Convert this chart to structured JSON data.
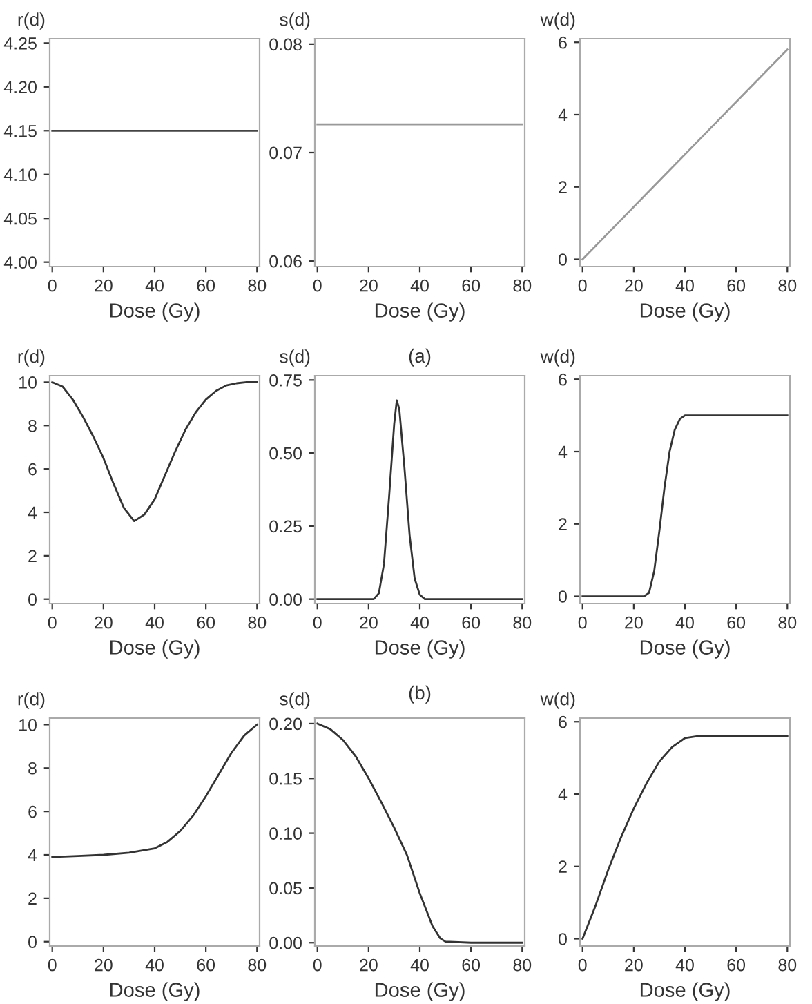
{
  "chart_data": [
    {
      "type": "line",
      "ylabel": "r(d)",
      "xlabel": "Dose (Gy)",
      "xlim": [
        -1,
        81
      ],
      "xticks": [
        0,
        20,
        40,
        60,
        80
      ],
      "ylim": [
        3.995,
        4.255
      ],
      "yticks": [
        {
          "value": 4.0,
          "label": "4.00"
        },
        {
          "value": 4.05,
          "label": "4.05"
        },
        {
          "value": 4.1,
          "label": "4.10"
        },
        {
          "value": 4.15,
          "label": "4.15"
        },
        {
          "value": 4.2,
          "label": "4.20"
        },
        {
          "value": 4.25,
          "label": "4.25"
        }
      ],
      "grid": false,
      "series": [
        {
          "color": "#444444",
          "x": [
            0,
            80
          ],
          "values": [
            4.15,
            4.15
          ]
        }
      ]
    },
    {
      "type": "line",
      "ylabel": "s(d)",
      "xlabel": "Dose (Gy)",
      "annotations": [
        "(a)"
      ],
      "xlim": [
        -1,
        81
      ],
      "xticks": [
        0,
        20,
        40,
        60,
        80
      ],
      "ylim": [
        0.0595,
        0.0805
      ],
      "yticks": [
        {
          "value": 0.06,
          "label": "0.06"
        },
        {
          "value": 0.07,
          "label": "0.07"
        },
        {
          "value": 0.08,
          "label": "0.08"
        }
      ],
      "grid": false,
      "series": [
        {
          "color": "#999999",
          "x": [
            0,
            80
          ],
          "values": [
            0.0726,
            0.0726
          ]
        }
      ]
    },
    {
      "type": "line",
      "ylabel": "w(d)",
      "xlabel": "Dose (Gy)",
      "xlim": [
        -1,
        81
      ],
      "xticks": [
        0,
        20,
        40,
        60,
        80
      ],
      "ylim": [
        -0.2,
        6.1
      ],
      "yticks": [
        0,
        2,
        4,
        6
      ],
      "grid": false,
      "series": [
        {
          "color": "#999999",
          "x": [
            0,
            80
          ],
          "values": [
            0,
            5.8
          ]
        }
      ]
    },
    {
      "type": "line",
      "ylabel": "r(d)",
      "xlabel": "Dose (Gy)",
      "xlim": [
        -1,
        81
      ],
      "xticks": [
        0,
        20,
        40,
        60,
        80
      ],
      "ylim": [
        -0.2,
        10.3
      ],
      "yticks": [
        0,
        2,
        4,
        6,
        8,
        10
      ],
      "grid": false,
      "series": [
        {
          "color": "#333333",
          "x": [
            0,
            4,
            8,
            12,
            16,
            20,
            24,
            28,
            32,
            36,
            40,
            44,
            48,
            52,
            56,
            60,
            64,
            68,
            72,
            76,
            80
          ],
          "values": [
            10.0,
            9.8,
            9.2,
            8.4,
            7.5,
            6.5,
            5.3,
            4.2,
            3.6,
            3.9,
            4.6,
            5.7,
            6.8,
            7.8,
            8.6,
            9.2,
            9.6,
            9.85,
            9.95,
            10.0,
            10.0
          ]
        }
      ]
    },
    {
      "type": "line",
      "ylabel": "s(d)",
      "xlabel": "Dose (Gy)",
      "annotations": [
        "(b)"
      ],
      "xlim": [
        -1,
        81
      ],
      "xticks": [
        0,
        20,
        40,
        60,
        80
      ],
      "ylim": [
        -0.015,
        0.765
      ],
      "yticks": [
        {
          "value": 0,
          "label": "0.00"
        },
        {
          "value": 0.25,
          "label": "0.25"
        },
        {
          "value": 0.5,
          "label": "0.50"
        },
        {
          "value": 0.75,
          "label": "0.75"
        }
      ],
      "grid": false,
      "series": [
        {
          "color": "#333333",
          "x": [
            0,
            22,
            24,
            26,
            28,
            30,
            31,
            32,
            34,
            36,
            38,
            40,
            42,
            50,
            80
          ],
          "values": [
            0.0,
            0.0,
            0.02,
            0.12,
            0.35,
            0.6,
            0.68,
            0.65,
            0.45,
            0.22,
            0.07,
            0.015,
            0.0,
            0.0,
            0.0
          ]
        }
      ]
    },
    {
      "type": "line",
      "ylabel": "w(d)",
      "xlabel": "Dose (Gy)",
      "xlim": [
        -1,
        81
      ],
      "xticks": [
        0,
        20,
        40,
        60,
        80
      ],
      "ylim": [
        -0.2,
        6.1
      ],
      "yticks": [
        0,
        2,
        4,
        6
      ],
      "grid": false,
      "series": [
        {
          "color": "#333333",
          "x": [
            0,
            24,
            26,
            28,
            30,
            32,
            34,
            36,
            38,
            40,
            50,
            80
          ],
          "values": [
            0.0,
            0.0,
            0.1,
            0.7,
            1.8,
            3.0,
            4.0,
            4.6,
            4.9,
            5.0,
            5.0,
            5.0
          ]
        }
      ]
    },
    {
      "type": "line",
      "ylabel": "r(d)",
      "xlabel": "Dose (Gy)",
      "xlim": [
        -1,
        81
      ],
      "xticks": [
        0,
        20,
        40,
        60,
        80
      ],
      "ylim": [
        -0.2,
        10.3
      ],
      "yticks": [
        0,
        2,
        4,
        6,
        8,
        10
      ],
      "grid": false,
      "series": [
        {
          "color": "#333333",
          "x": [
            0,
            10,
            20,
            30,
            40,
            45,
            50,
            55,
            60,
            65,
            70,
            75,
            80
          ],
          "values": [
            3.9,
            3.95,
            4.0,
            4.1,
            4.3,
            4.6,
            5.1,
            5.8,
            6.7,
            7.7,
            8.7,
            9.5,
            10.0
          ]
        }
      ]
    },
    {
      "type": "line",
      "ylabel": "s(d)",
      "xlabel": "Dose (Gy)",
      "xlim": [
        -1,
        81
      ],
      "xticks": [
        0,
        20,
        40,
        60,
        80
      ],
      "ylim": [
        -0.003,
        0.205
      ],
      "yticks": [
        {
          "value": 0,
          "label": "0.00"
        },
        {
          "value": 0.05,
          "label": "0.05"
        },
        {
          "value": 0.1,
          "label": "0.10"
        },
        {
          "value": 0.15,
          "label": "0.15"
        },
        {
          "value": 0.2,
          "label": "0.20"
        }
      ],
      "grid": false,
      "series": [
        {
          "color": "#333333",
          "x": [
            0,
            5,
            10,
            15,
            20,
            25,
            30,
            35,
            40,
            45,
            48,
            50,
            60,
            80
          ],
          "values": [
            0.2,
            0.195,
            0.185,
            0.17,
            0.15,
            0.128,
            0.105,
            0.08,
            0.045,
            0.015,
            0.004,
            0.001,
            0.0,
            0.0
          ]
        }
      ]
    },
    {
      "type": "line",
      "ylabel": "w(d)",
      "xlabel": "Dose (Gy)",
      "xlim": [
        -1,
        81
      ],
      "xticks": [
        0,
        20,
        40,
        60,
        80
      ],
      "ylim": [
        -0.2,
        6.1
      ],
      "yticks": [
        0,
        2,
        4,
        6
      ],
      "grid": false,
      "series": [
        {
          "color": "#333333",
          "x": [
            0,
            5,
            10,
            15,
            20,
            25,
            30,
            35,
            40,
            45,
            50,
            80
          ],
          "values": [
            0.0,
            0.9,
            1.9,
            2.8,
            3.6,
            4.3,
            4.9,
            5.3,
            5.55,
            5.6,
            5.6,
            5.6
          ]
        }
      ]
    }
  ]
}
